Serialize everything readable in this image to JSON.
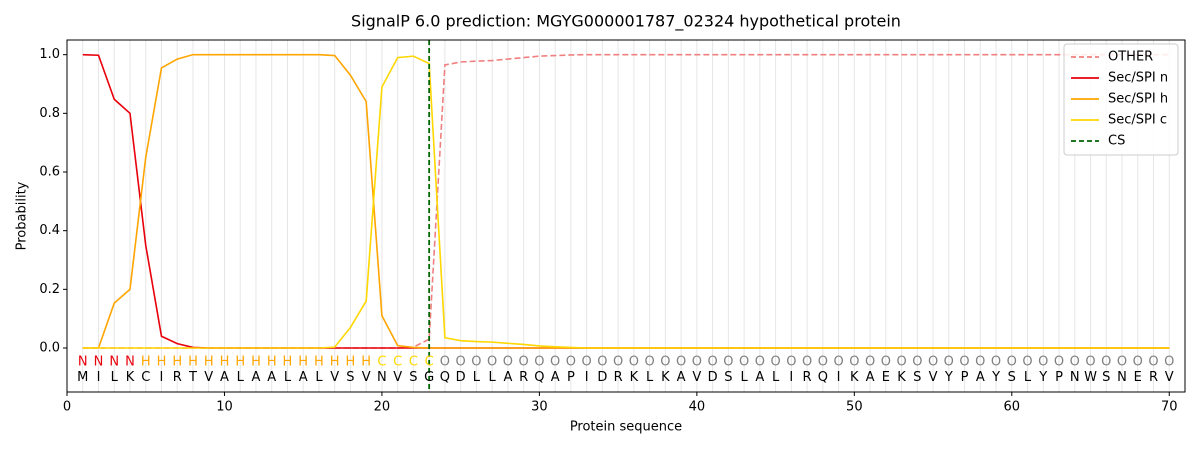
{
  "chart_data": {
    "type": "line",
    "title": "SignalP 6.0 prediction: MGYG000001787_02324 hypothetical protein",
    "xlabel": "Protein sequence",
    "ylabel": "Probability",
    "x": [
      1,
      2,
      3,
      4,
      5,
      6,
      7,
      8,
      9,
      10,
      11,
      12,
      13,
      14,
      15,
      16,
      17,
      18,
      19,
      20,
      21,
      22,
      23,
      24,
      25,
      26,
      27,
      28,
      29,
      30,
      31,
      32,
      33,
      34,
      35,
      36,
      37,
      38,
      39,
      40,
      41,
      42,
      43,
      44,
      45,
      46,
      47,
      48,
      49,
      50,
      51,
      52,
      53,
      54,
      55,
      56,
      57,
      58,
      59,
      60,
      61,
      62,
      63,
      64,
      65,
      66,
      67,
      68,
      69,
      70
    ],
    "series": [
      {
        "name": "OTHER",
        "color": "#f08080",
        "linestyle": "dashed",
        "values": [
          0,
          0,
          0,
          0,
          0,
          0,
          0,
          0,
          0,
          0,
          0,
          0,
          0,
          0,
          0,
          0,
          0,
          0,
          0,
          0,
          0,
          0.003,
          0.03,
          0.965,
          0.975,
          0.978,
          0.98,
          0.985,
          0.99,
          0.995,
          0.997,
          0.999,
          1,
          1,
          1,
          1,
          1,
          1,
          1,
          1,
          1,
          1,
          1,
          1,
          1,
          1,
          1,
          1,
          1,
          1,
          1,
          1,
          1,
          1,
          1,
          1,
          1,
          1,
          1,
          1,
          1,
          1,
          1,
          1,
          1,
          1,
          1,
          1,
          1,
          1
        ]
      },
      {
        "name": "Sec/SPI n",
        "color": "#e8000b",
        "linestyle": "solid",
        "values": [
          1,
          0.998,
          0.848,
          0.8,
          0.35,
          0.04,
          0.015,
          0.002,
          0,
          0,
          0,
          0,
          0,
          0,
          0,
          0,
          0,
          0,
          0,
          0,
          0,
          0,
          0,
          0,
          0,
          0,
          0,
          0,
          0,
          0,
          0,
          0,
          0,
          0,
          0,
          0,
          0,
          0,
          0,
          0,
          0,
          0,
          0,
          0,
          0,
          0,
          0,
          0,
          0,
          0,
          0,
          0,
          0,
          0,
          0,
          0,
          0,
          0,
          0,
          0,
          0,
          0,
          0,
          0,
          0,
          0,
          0,
          0,
          0,
          0
        ]
      },
      {
        "name": "Sec/SPI h",
        "color": "#ffa500",
        "linestyle": "solid",
        "values": [
          0,
          0,
          0.153,
          0.2,
          0.65,
          0.955,
          0.985,
          1,
          1,
          1,
          1,
          1,
          1,
          1,
          1,
          1,
          0.997,
          0.93,
          0.84,
          0.11,
          0.008,
          0.002,
          0,
          0,
          0,
          0,
          0,
          0,
          0,
          0,
          0,
          0,
          0,
          0,
          0,
          0,
          0,
          0,
          0,
          0,
          0,
          0,
          0,
          0,
          0,
          0,
          0,
          0,
          0,
          0,
          0,
          0,
          0,
          0,
          0,
          0,
          0,
          0,
          0,
          0,
          0,
          0,
          0,
          0,
          0,
          0,
          0,
          0,
          0,
          0
        ]
      },
      {
        "name": "Sec/SPI c",
        "color": "#ffd700",
        "linestyle": "solid",
        "values": [
          0,
          0,
          0,
          0,
          0,
          0,
          0,
          0,
          0,
          0,
          0,
          0,
          0,
          0,
          0,
          0,
          0.003,
          0.07,
          0.16,
          0.89,
          0.99,
          0.995,
          0.97,
          0.035,
          0.025,
          0.022,
          0.02,
          0.016,
          0.012,
          0.007,
          0.004,
          0.002,
          0,
          0,
          0,
          0,
          0,
          0,
          0,
          0,
          0,
          0,
          0,
          0,
          0,
          0,
          0,
          0,
          0,
          0,
          0,
          0,
          0,
          0,
          0,
          0,
          0,
          0,
          0,
          0,
          0,
          0,
          0,
          0,
          0,
          0,
          0,
          0,
          0,
          0
        ]
      }
    ],
    "cs": {
      "name": "CS",
      "x": 23,
      "color": "#006400"
    },
    "regions": [
      "N",
      "N",
      "N",
      "N",
      "H",
      "H",
      "H",
      "H",
      "H",
      "H",
      "H",
      "H",
      "H",
      "H",
      "H",
      "H",
      "H",
      "H",
      "H",
      "C",
      "C",
      "C",
      "C",
      "O",
      "O",
      "O",
      "O",
      "O",
      "O",
      "O",
      "O",
      "O",
      "O",
      "O",
      "O",
      "O",
      "O",
      "O",
      "O",
      "O",
      "O",
      "O",
      "O",
      "O",
      "O",
      "O",
      "O",
      "O",
      "O",
      "O",
      "O",
      "O",
      "O",
      "O",
      "O",
      "O",
      "O",
      "O",
      "O",
      "O",
      "O",
      "O",
      "O",
      "O",
      "O",
      "O",
      "O",
      "O",
      "O",
      "O"
    ],
    "region_colors": {
      "N": "#e8000b",
      "H": "#ffa500",
      "C": "#ffd700",
      "O": "#808080"
    },
    "sequence": [
      "M",
      "I",
      "L",
      "K",
      "C",
      "I",
      "R",
      "T",
      "V",
      "A",
      "L",
      "A",
      "A",
      "L",
      "A",
      "L",
      "V",
      "S",
      "V",
      "N",
      "V",
      "S",
      "G",
      "Q",
      "D",
      "L",
      "L",
      "A",
      "R",
      "Q",
      "A",
      "P",
      "I",
      "D",
      "R",
      "K",
      "L",
      "K",
      "A",
      "V",
      "D",
      "S",
      "L",
      "A",
      "L",
      "I",
      "R",
      "Q",
      "I",
      "K",
      "A",
      "E",
      "K",
      "S",
      "V",
      "Y",
      "P",
      "A",
      "Y",
      "S",
      "L",
      "Y",
      "P",
      "N",
      "W",
      "S",
      "N",
      "E",
      "R",
      "V"
    ],
    "xlim": [
      0,
      71
    ],
    "ylim": [
      -0.15,
      1.05
    ],
    "xticks": [
      0,
      10,
      20,
      30,
      40,
      50,
      60,
      70
    ],
    "yticks": [
      {
        "value": 0,
        "label": "0.0"
      },
      {
        "value": 0.2,
        "label": "0.2"
      },
      {
        "value": 0.4,
        "label": "0.4"
      },
      {
        "value": 0.6,
        "label": "0.6"
      },
      {
        "value": 0.8,
        "label": "0.8"
      },
      {
        "value": 1,
        "label": "1.0"
      }
    ],
    "grid": true,
    "legend": "upper right"
  }
}
